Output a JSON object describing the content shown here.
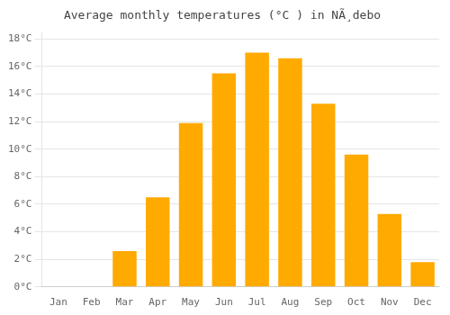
{
  "chart_data": {
    "type": "bar",
    "title": "Average monthly temperatures (°C ) in NÃ¸debo",
    "categories": [
      "Jan",
      "Feb",
      "Mar",
      "Apr",
      "May",
      "Jun",
      "Jul",
      "Aug",
      "Sep",
      "Oct",
      "Nov",
      "Dec"
    ],
    "values": [
      0.0,
      0.0,
      2.6,
      6.5,
      11.9,
      15.5,
      17.0,
      16.6,
      13.3,
      9.6,
      5.3,
      1.8
    ],
    "color": "#FFAA00",
    "ylim": [
      0,
      18.5
    ],
    "yticks": [
      {
        "value": 0,
        "label": "0°C"
      },
      {
        "value": 2,
        "label": "2°C"
      },
      {
        "value": 4,
        "label": "4°C"
      },
      {
        "value": 6,
        "label": "6°C"
      },
      {
        "value": 8,
        "label": "8°C"
      },
      {
        "value": 10,
        "label": "10°C"
      },
      {
        "value": 12,
        "label": "12°C"
      },
      {
        "value": 14,
        "label": "14°C"
      },
      {
        "value": 16,
        "label": "16°C"
      },
      {
        "value": 18,
        "label": "18°C"
      }
    ],
    "grid": true
  }
}
